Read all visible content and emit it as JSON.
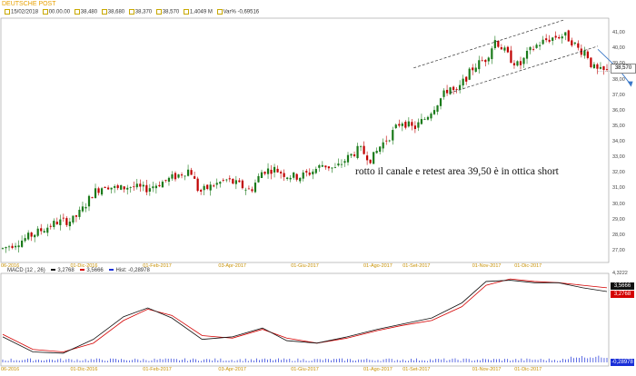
{
  "header": {
    "title": "DEUTSCHE POST",
    "info": [
      {
        "icon": "square-icon",
        "label": "15/02/2018"
      },
      {
        "icon": "square-icon",
        "label": "00.00.00"
      },
      {
        "icon": "square-icon",
        "label": "38,480"
      },
      {
        "icon": "square-icon",
        "label": "38,680"
      },
      {
        "icon": "square-icon",
        "label": "38,370"
      },
      {
        "icon": "square-icon",
        "label": "38,570"
      },
      {
        "icon": "square-icon",
        "label": "1,4049 M"
      },
      {
        "icon": "square-icon",
        "label": "Var% -0,69516"
      }
    ]
  },
  "annotation": "rotto il canale e retest area 39,50 è in ottica short",
  "last_price_label": "38,570",
  "macd": {
    "label": "MACD",
    "params": "(12 , 26)",
    "macd_value": "3,2768",
    "signal_value": "3,5666",
    "hist_label": "Hist:",
    "hist_value": "-0,28978",
    "scale_top": "4,3222",
    "box_macd": "3,5666",
    "box_signal": "3,2768",
    "box_hist": "-0,28978"
  },
  "colors": {
    "candle_up": "#1a7a1a",
    "candle_down": "#c00000",
    "macd_line": "#111111",
    "signal_line": "#d40000",
    "histogram": "#1a2fd8",
    "date_labels": "#c89000",
    "title": "#e8a000",
    "arrow": "#3a78c8"
  },
  "chart_data": {
    "type": "candlestick",
    "title": "DEUTSCHE POST",
    "y_ticks": [
      "27,00",
      "28,00",
      "29,00",
      "30,00",
      "31,00",
      "32,00",
      "33,00",
      "34,00",
      "35,00",
      "36,00",
      "37,00",
      "38,00",
      "39,00",
      "40,00",
      "41,00"
    ],
    "ylim": [
      26.3,
      42.0
    ],
    "x_ticks": [
      "06-2016",
      "01-Dic-2016",
      "01-Feb-2017",
      "03-Apr-2017",
      "01-Giu-2017",
      "01-Ago-2017",
      "01-Set-2017",
      "01-Nov-2017",
      "01-Dic-2017"
    ],
    "x_tick_frac": [
      0.0,
      0.115,
      0.235,
      0.36,
      0.48,
      0.6,
      0.665,
      0.78,
      0.85
    ],
    "price_path": [
      [
        0,
        27.2
      ],
      [
        0.03,
        27.7
      ],
      [
        0.06,
        28.3
      ],
      [
        0.09,
        28.9
      ],
      [
        0.115,
        29.0
      ],
      [
        0.13,
        29.6
      ],
      [
        0.15,
        30.8
      ],
      [
        0.17,
        31.3
      ],
      [
        0.19,
        31.0
      ],
      [
        0.21,
        31.2
      ],
      [
        0.235,
        31.0
      ],
      [
        0.26,
        31.4
      ],
      [
        0.29,
        31.9
      ],
      [
        0.31,
        32.3
      ],
      [
        0.325,
        30.8
      ],
      [
        0.345,
        31.2
      ],
      [
        0.37,
        31.6
      ],
      [
        0.39,
        31.3
      ],
      [
        0.41,
        30.9
      ],
      [
        0.43,
        32.2
      ],
      [
        0.45,
        32.3
      ],
      [
        0.47,
        31.9
      ],
      [
        0.49,
        31.8
      ],
      [
        0.51,
        32.1
      ],
      [
        0.53,
        32.6
      ],
      [
        0.55,
        32.3
      ],
      [
        0.57,
        33.0
      ],
      [
        0.59,
        33.6
      ],
      [
        0.61,
        32.9
      ],
      [
        0.625,
        33.8
      ],
      [
        0.64,
        34.4
      ],
      [
        0.66,
        35.4
      ],
      [
        0.68,
        34.9
      ],
      [
        0.7,
        35.6
      ],
      [
        0.72,
        36.6
      ],
      [
        0.74,
        37.6
      ],
      [
        0.75,
        37.1
      ],
      [
        0.76,
        37.8
      ],
      [
        0.78,
        38.9
      ],
      [
        0.8,
        39.4
      ],
      [
        0.815,
        40.6
      ],
      [
        0.83,
        39.9
      ],
      [
        0.84,
        39.4
      ],
      [
        0.855,
        38.9
      ],
      [
        0.87,
        39.8
      ],
      [
        0.885,
        40.3
      ],
      [
        0.9,
        40.6
      ],
      [
        0.915,
        40.8
      ],
      [
        0.93,
        40.9
      ],
      [
        0.945,
        40.4
      ],
      [
        0.955,
        39.9
      ],
      [
        0.965,
        39.9
      ],
      [
        0.975,
        38.9
      ],
      [
        0.985,
        38.6
      ],
      [
        1.0,
        38.57
      ]
    ],
    "channel_upper": [
      [
        0.68,
        38.8
      ],
      [
        0.93,
        41.9
      ]
    ],
    "channel_lower": [
      [
        0.74,
        37.2
      ],
      [
        0.985,
        40.2
      ]
    ],
    "forecast_arrow": [
      [
        0.985,
        40.0
      ],
      [
        1.02,
        38.7
      ],
      [
        1.04,
        37.7
      ]
    ],
    "last_price": 38.57,
    "macd_series": {
      "macd": [
        [
          0,
          -0.3
        ],
        [
          0.05,
          -1.5
        ],
        [
          0.1,
          -1.6
        ],
        [
          0.15,
          -0.5
        ],
        [
          0.2,
          1.3
        ],
        [
          0.24,
          2.0
        ],
        [
          0.28,
          1.2
        ],
        [
          0.33,
          -0.5
        ],
        [
          0.38,
          -0.3
        ],
        [
          0.43,
          0.4
        ],
        [
          0.47,
          -0.6
        ],
        [
          0.52,
          -0.8
        ],
        [
          0.57,
          -0.3
        ],
        [
          0.62,
          0.3
        ],
        [
          0.66,
          0.7
        ],
        [
          0.71,
          1.2
        ],
        [
          0.76,
          2.4
        ],
        [
          0.8,
          4.1
        ],
        [
          0.84,
          4.2
        ],
        [
          0.88,
          4.0
        ],
        [
          0.92,
          4.0
        ],
        [
          0.96,
          3.6
        ],
        [
          1.0,
          3.3
        ]
      ],
      "signal": [
        [
          0,
          -0.1
        ],
        [
          0.05,
          -1.3
        ],
        [
          0.1,
          -1.5
        ],
        [
          0.15,
          -0.8
        ],
        [
          0.2,
          1.0
        ],
        [
          0.24,
          1.9
        ],
        [
          0.28,
          1.4
        ],
        [
          0.33,
          -0.2
        ],
        [
          0.38,
          -0.4
        ],
        [
          0.43,
          0.3
        ],
        [
          0.47,
          -0.4
        ],
        [
          0.52,
          -0.8
        ],
        [
          0.57,
          -0.4
        ],
        [
          0.62,
          0.2
        ],
        [
          0.66,
          0.6
        ],
        [
          0.71,
          1.0
        ],
        [
          0.76,
          2.1
        ],
        [
          0.8,
          3.8
        ],
        [
          0.84,
          4.3
        ],
        [
          0.88,
          4.1
        ],
        [
          0.92,
          4.0
        ],
        [
          0.96,
          3.8
        ],
        [
          1.0,
          3.6
        ]
      ],
      "ylim": [
        -2.4,
        4.6
      ]
    }
  }
}
